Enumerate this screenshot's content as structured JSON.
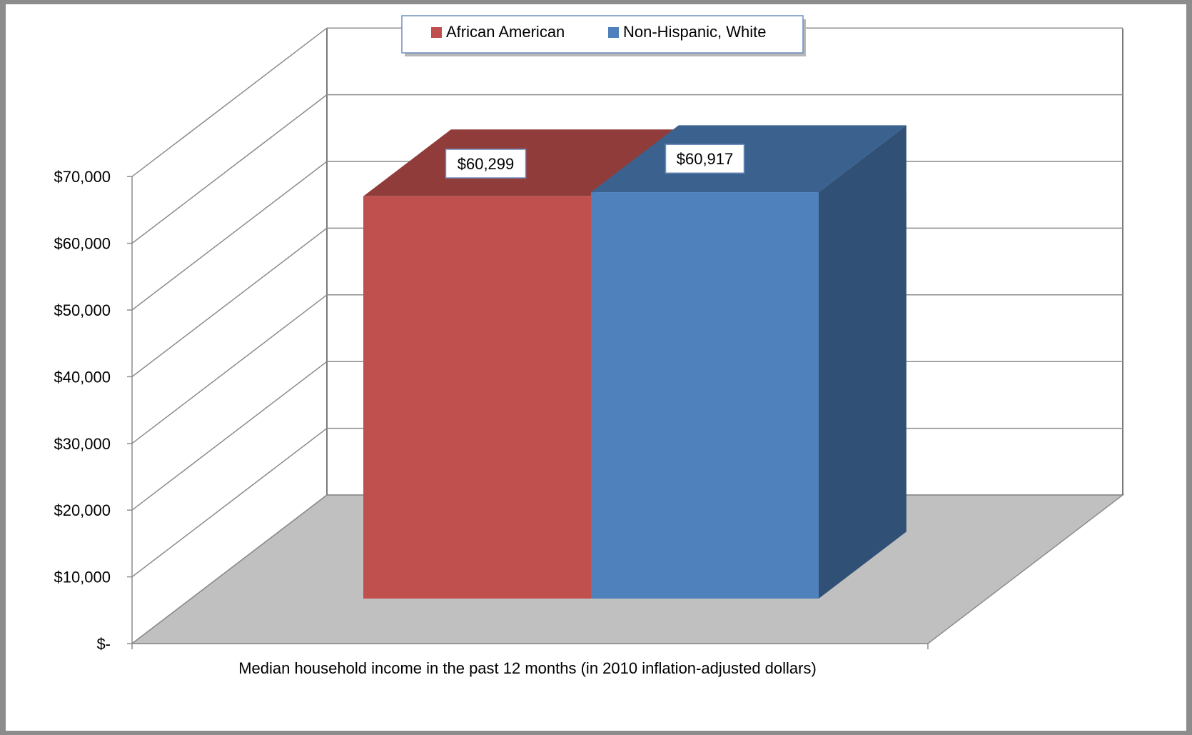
{
  "chart_data": {
    "type": "bar",
    "style": "3d-column",
    "categories": [
      "Median household income in the past 12 months (in 2010 inflation-adjusted dollars)"
    ],
    "series": [
      {
        "name": "African American",
        "values": [
          60299
        ],
        "value_label": "$60,299",
        "color": "#c0504d"
      },
      {
        "name": "Non-Hispanic, White",
        "values": [
          60917
        ],
        "value_label": "$60,917",
        "color": "#4f81bd"
      }
    ],
    "title": "",
    "xlabel": "Median household income in the past 12 months (in 2010 inflation-adjusted dollars)",
    "ylabel": "",
    "ylim": [
      0,
      70000
    ],
    "y_ticks": [
      0,
      10000,
      20000,
      30000,
      40000,
      50000,
      60000,
      70000
    ],
    "y_tick_labels": [
      "$-",
      "$10,000",
      "$20,000",
      "$30,000",
      "$40,000",
      "$50,000",
      "$60,000",
      "$70,000"
    ],
    "grid": true,
    "legend": "top-center"
  }
}
